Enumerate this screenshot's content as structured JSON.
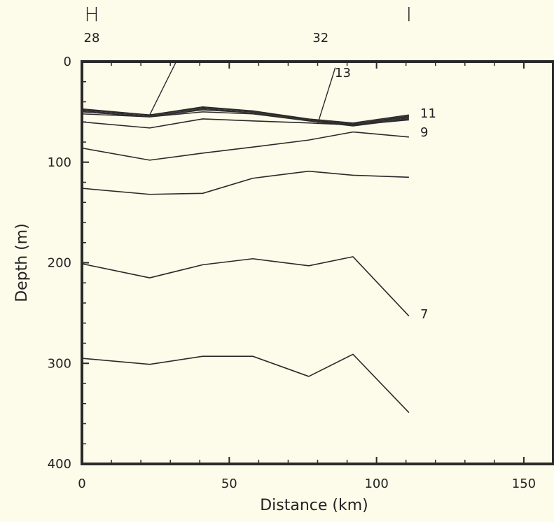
{
  "chart_data": {
    "type": "line",
    "xlabel": "Distance (km)",
    "ylabel": "Depth (m)",
    "xlim": [
      0,
      160
    ],
    "ylim": [
      400,
      0
    ],
    "y_inverted": true,
    "grid": false,
    "legend": "none",
    "x_ticks": [
      0,
      50,
      100,
      150
    ],
    "y_ticks": [
      0,
      100,
      200,
      300,
      400
    ],
    "top_markers": [
      {
        "label": "H",
        "x": 0
      },
      {
        "label": "I",
        "x": 111
      }
    ],
    "station_labels": [
      {
        "label": "28",
        "x": 0
      },
      {
        "label": "32",
        "x": 81
      }
    ],
    "station_x": [
      0,
      23,
      41,
      58,
      77,
      92,
      111
    ],
    "series": [
      {
        "name": "7",
        "values": [
          295,
          301,
          293,
          293,
          313,
          291,
          349
        ]
      },
      {
        "values": [
          201,
          215,
          202,
          196,
          203,
          194,
          253
        ]
      },
      {
        "values": [
          126,
          132,
          131,
          116,
          109,
          113,
          115
        ]
      },
      {
        "values": [
          86,
          98,
          91,
          85,
          78,
          70,
          75
        ]
      },
      {
        "name": "9",
        "values": [
          60,
          66,
          57,
          59,
          61,
          63,
          58
        ]
      },
      {
        "values": [
          52,
          55,
          50,
          52,
          59,
          64,
          57
        ]
      },
      {
        "values": [
          50,
          55,
          48,
          51,
          59,
          63,
          56
        ]
      },
      {
        "values": [
          49,
          54,
          47,
          50,
          58,
          62,
          55
        ]
      },
      {
        "name": "11",
        "values": [
          48,
          53,
          46,
          49,
          58,
          62,
          54
        ]
      },
      {
        "name": "13",
        "values": [
          47,
          53,
          45,
          49,
          57,
          61,
          53
        ]
      }
    ],
    "label_leaders": [
      {
        "label": "13",
        "from": [
          80,
          62
        ],
        "to": [
          86,
          6
        ]
      },
      {
        "label": "",
        "from": [
          23,
          53
        ],
        "to": [
          32,
          0
        ]
      }
    ],
    "line_color": "#2a2a2a",
    "frame_color": "#2a2a2a",
    "background": "#fdfbe9"
  }
}
